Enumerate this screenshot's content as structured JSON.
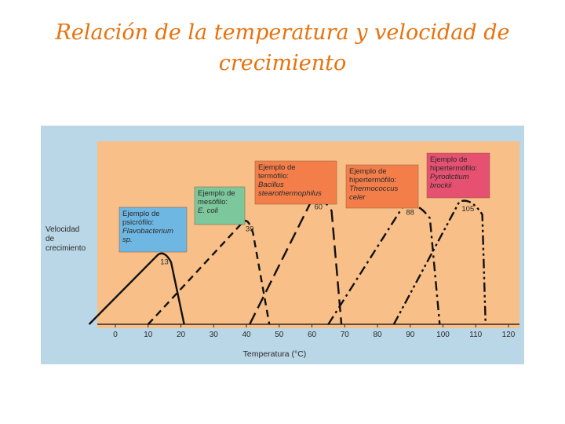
{
  "title": {
    "line1": "Relación de la temperatura y velocidad de",
    "line2": "crecimiento"
  },
  "colors": {
    "title": "#e8720c",
    "background": "#bad7e7",
    "plot_area": "#f8bf88",
    "psychrophile_box": "#6fb7e3",
    "mesophile_box": "#7cc79b",
    "thermophile_box": "#f47e4a",
    "hyperthermophile_box": "#f47e4a",
    "hyperthermophile2_box": "#e65071"
  },
  "chart_data": {
    "type": "line",
    "title": "",
    "xlabel": "Temperatura (°C)",
    "ylabel": "Velocidad de crecimiento",
    "xlim": [
      0,
      120
    ],
    "xticks": [
      "0",
      "10",
      "20",
      "30",
      "40",
      "50",
      "60",
      "70",
      "80",
      "90",
      "100",
      "110",
      "120"
    ],
    "grid": false,
    "series": [
      {
        "peak_label": "13",
        "dash": "solid",
        "box_lines": [
          "Ejemplo de",
          "psicrófilo:",
          "Flavobacterium",
          "sp."
        ],
        "x": [
          -8,
          13,
          17,
          21
        ],
        "y": [
          0,
          0.38,
          0.34,
          0
        ]
      },
      {
        "peak_label": "39",
        "dash": "dashed",
        "box_lines": [
          "Ejemplo de",
          "mesófilo:",
          "E. coli"
        ],
        "x": [
          10,
          39,
          42,
          47
        ],
        "y": [
          0,
          0.56,
          0.5,
          0
        ]
      },
      {
        "peak_label": "60",
        "dash": "longdash",
        "box_lines": [
          "Ejemplo de",
          "termófilo:",
          "Bacillus",
          "stearothermophilus"
        ],
        "x": [
          41,
          60,
          66,
          69
        ],
        "y": [
          0,
          0.68,
          0.62,
          0
        ]
      },
      {
        "peak_label": "88",
        "dash": "dashdot",
        "box_lines": [
          "Ejemplo de",
          "hipertermófilo:",
          "Thermococcus",
          "celer"
        ],
        "x": [
          65,
          88,
          96,
          99
        ],
        "y": [
          0,
          0.65,
          0.58,
          0
        ]
      },
      {
        "peak_label": "105",
        "dash": "dashdotdot",
        "box_lines": [
          "Ejemplo de",
          "hipertermófilo:",
          "Pyrodictium",
          "brockii"
        ],
        "x": [
          85,
          105,
          112,
          113
        ],
        "y": [
          0,
          0.67,
          0.6,
          0
        ]
      }
    ]
  }
}
